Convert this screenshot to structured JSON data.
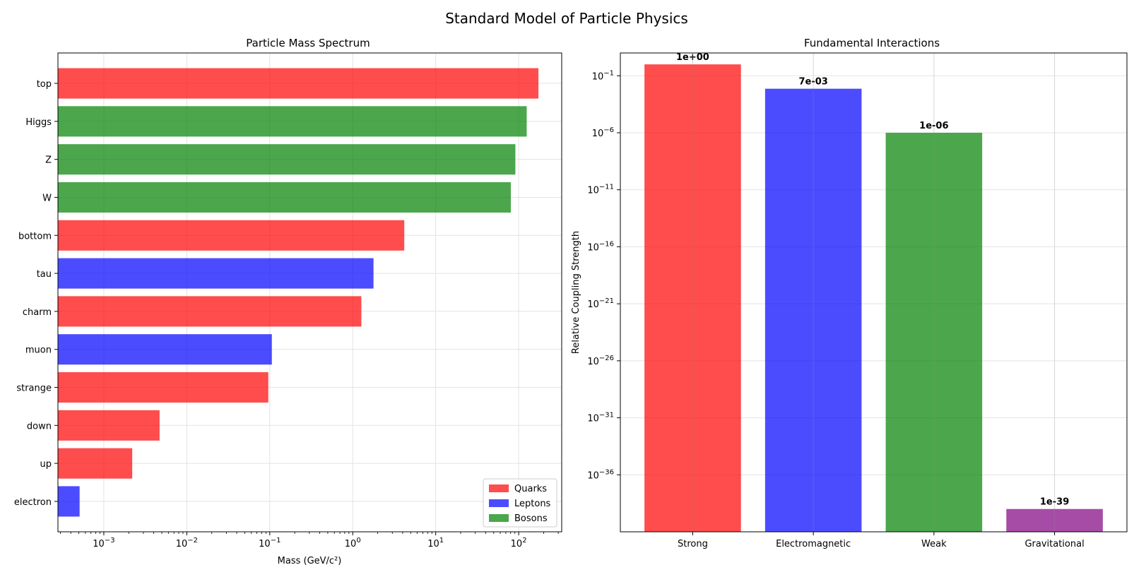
{
  "figure": {
    "title": "Standard Model of Particle Physics"
  },
  "chart_data": [
    {
      "type": "bar",
      "orientation": "horizontal",
      "title": "Particle Mass Spectrum",
      "xlabel": "Mass (GeV/c²)",
      "ylabel": "",
      "xscale": "log",
      "xlim": [
        0.00028,
        330
      ],
      "grid": true,
      "legend_position": "lower-right",
      "categories": [
        "electron",
        "up",
        "down",
        "strange",
        "muon",
        "charm",
        "tau",
        "bottom",
        "W",
        "Z",
        "Higgs",
        "top"
      ],
      "values": [
        0.000511,
        0.0022,
        0.0047,
        0.096,
        0.106,
        1.27,
        1.78,
        4.18,
        80.4,
        91.2,
        125,
        173
      ],
      "groups": [
        "Leptons",
        "Quarks",
        "Quarks",
        "Quarks",
        "Leptons",
        "Quarks",
        "Leptons",
        "Quarks",
        "Bosons",
        "Bosons",
        "Bosons",
        "Quarks"
      ],
      "legend": [
        {
          "name": "Quarks",
          "color": "#ff0000"
        },
        {
          "name": "Leptons",
          "color": "#0000ff"
        },
        {
          "name": "Bosons",
          "color": "#008000"
        }
      ],
      "xticks": [
        {
          "value": 0.001,
          "base": "10",
          "exp": "−3"
        },
        {
          "value": 0.01,
          "base": "10",
          "exp": "−2"
        },
        {
          "value": 0.1,
          "base": "10",
          "exp": "−1"
        },
        {
          "value": 1,
          "base": "10",
          "exp": "0"
        },
        {
          "value": 10,
          "base": "10",
          "exp": "1"
        },
        {
          "value": 100,
          "base": "10",
          "exp": "2"
        }
      ]
    },
    {
      "type": "bar",
      "title": "Fundamental Interactions",
      "xlabel": "",
      "ylabel": "Relative Coupling Strength",
      "yscale": "log",
      "ylim": [
        1e-41,
        10.0
      ],
      "grid": true,
      "categories": [
        "Strong",
        "Electromagnetic",
        "Weak",
        "Gravitational"
      ],
      "values": [
        1,
        0.0073,
        1e-06,
        1e-39
      ],
      "data_labels": [
        "1e+00",
        "7e-03",
        "1e-06",
        "1e-39"
      ],
      "colors": [
        "#ff0000",
        "#0000ff",
        "#008000",
        "#800080"
      ],
      "yticks": [
        {
          "value": 0.1,
          "base": "10",
          "exp": "−1"
        },
        {
          "value": 1e-06,
          "base": "10",
          "exp": "−6"
        },
        {
          "value": 1e-11,
          "base": "10",
          "exp": "−11"
        },
        {
          "value": 1e-16,
          "base": "10",
          "exp": "−16"
        },
        {
          "value": 1e-21,
          "base": "10",
          "exp": "−21"
        },
        {
          "value": 1e-26,
          "base": "10",
          "exp": "−26"
        },
        {
          "value": 1e-31,
          "base": "10",
          "exp": "−31"
        },
        {
          "value": 1e-36,
          "base": "10",
          "exp": "−36"
        }
      ]
    }
  ]
}
